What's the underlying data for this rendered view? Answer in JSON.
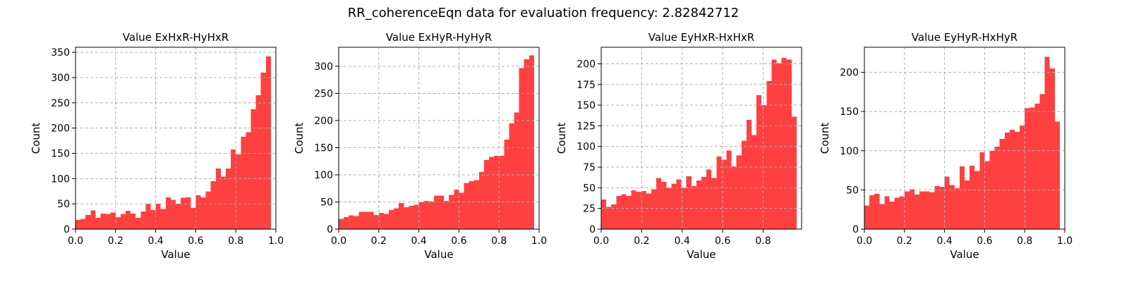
{
  "figure": {
    "title": "RR_coherenceEqn data for evaluation frequency: 2.82842712"
  },
  "colors": {
    "bar": "#ff4040",
    "grid": "#b0b0b0",
    "axis": "#000000"
  },
  "chart_data": [
    {
      "type": "bar",
      "title": "Value ExHxR-HyHxR",
      "xlabel": "Value",
      "ylabel": "Count",
      "xlim": [
        0,
        1
      ],
      "ylim": [
        0,
        360
      ],
      "xticks": [
        0.0,
        0.2,
        0.4,
        0.6,
        0.8,
        1.0
      ],
      "yticks": [
        0,
        50,
        100,
        150,
        200,
        250,
        300,
        350
      ],
      "grid": true,
      "bin_start": 0.0,
      "bin_width": 0.025,
      "values": [
        18,
        20,
        28,
        37,
        22,
        31,
        30,
        33,
        24,
        30,
        36,
        31,
        22,
        35,
        50,
        38,
        50,
        40,
        63,
        58,
        50,
        62,
        63,
        42,
        67,
        63,
        75,
        95,
        120,
        104,
        120,
        158,
        148,
        183,
        192,
        237,
        265,
        310,
        342
      ]
    },
    {
      "type": "bar",
      "title": "Value ExHyR-HyHyR",
      "xlabel": "Value",
      "ylabel": "Count",
      "xlim": [
        0,
        1
      ],
      "ylim": [
        0,
        335
      ],
      "xticks": [
        0.0,
        0.2,
        0.4,
        0.6,
        0.8,
        1.0
      ],
      "yticks": [
        0,
        50,
        100,
        150,
        200,
        250,
        300
      ],
      "grid": true,
      "bin_start": 0.0,
      "bin_width": 0.025,
      "values": [
        19,
        22,
        25,
        24,
        32,
        32,
        32,
        26,
        30,
        28,
        35,
        38,
        48,
        40,
        43,
        45,
        50,
        52,
        51,
        62,
        62,
        52,
        63,
        73,
        67,
        85,
        88,
        90,
        105,
        127,
        133,
        135,
        135,
        165,
        195,
        215,
        297,
        313,
        320
      ]
    },
    {
      "type": "bar",
      "title": "Value EyHxR-HxHxR",
      "xlabel": "Value",
      "ylabel": "Count",
      "xlim": [
        0,
        0.99
      ],
      "ylim": [
        0,
        220
      ],
      "xticks": [
        0.0,
        0.2,
        0.4,
        0.6,
        0.8
      ],
      "yticks": [
        0,
        25,
        50,
        75,
        100,
        125,
        150,
        175,
        200
      ],
      "grid": true,
      "bin_start": 0.0,
      "bin_width": 0.02475,
      "values": [
        36,
        27,
        30,
        40,
        42,
        40,
        47,
        45,
        46,
        43,
        48,
        62,
        57,
        50,
        55,
        60,
        50,
        64,
        52,
        59,
        63,
        72,
        62,
        88,
        84,
        95,
        76,
        89,
        107,
        132,
        114,
        162,
        150,
        179,
        205,
        201,
        207,
        205,
        136
      ]
    },
    {
      "type": "bar",
      "title": "Value EyHyR-HxHyR",
      "xlabel": "Value",
      "ylabel": "Count",
      "xlim": [
        0,
        1
      ],
      "ylim": [
        0,
        232
      ],
      "xticks": [
        0.0,
        0.2,
        0.4,
        0.6,
        0.8,
        1.0
      ],
      "yticks": [
        0,
        50,
        100,
        150,
        200
      ],
      "grid": true,
      "bin_start": 0.0,
      "bin_width": 0.025,
      "values": [
        30,
        43,
        45,
        32,
        42,
        35,
        40,
        42,
        48,
        51,
        44,
        48,
        48,
        47,
        55,
        54,
        67,
        56,
        52,
        80,
        62,
        81,
        74,
        98,
        87,
        100,
        105,
        115,
        123,
        127,
        124,
        132,
        154,
        155,
        160,
        172,
        220,
        205,
        137
      ]
    }
  ]
}
